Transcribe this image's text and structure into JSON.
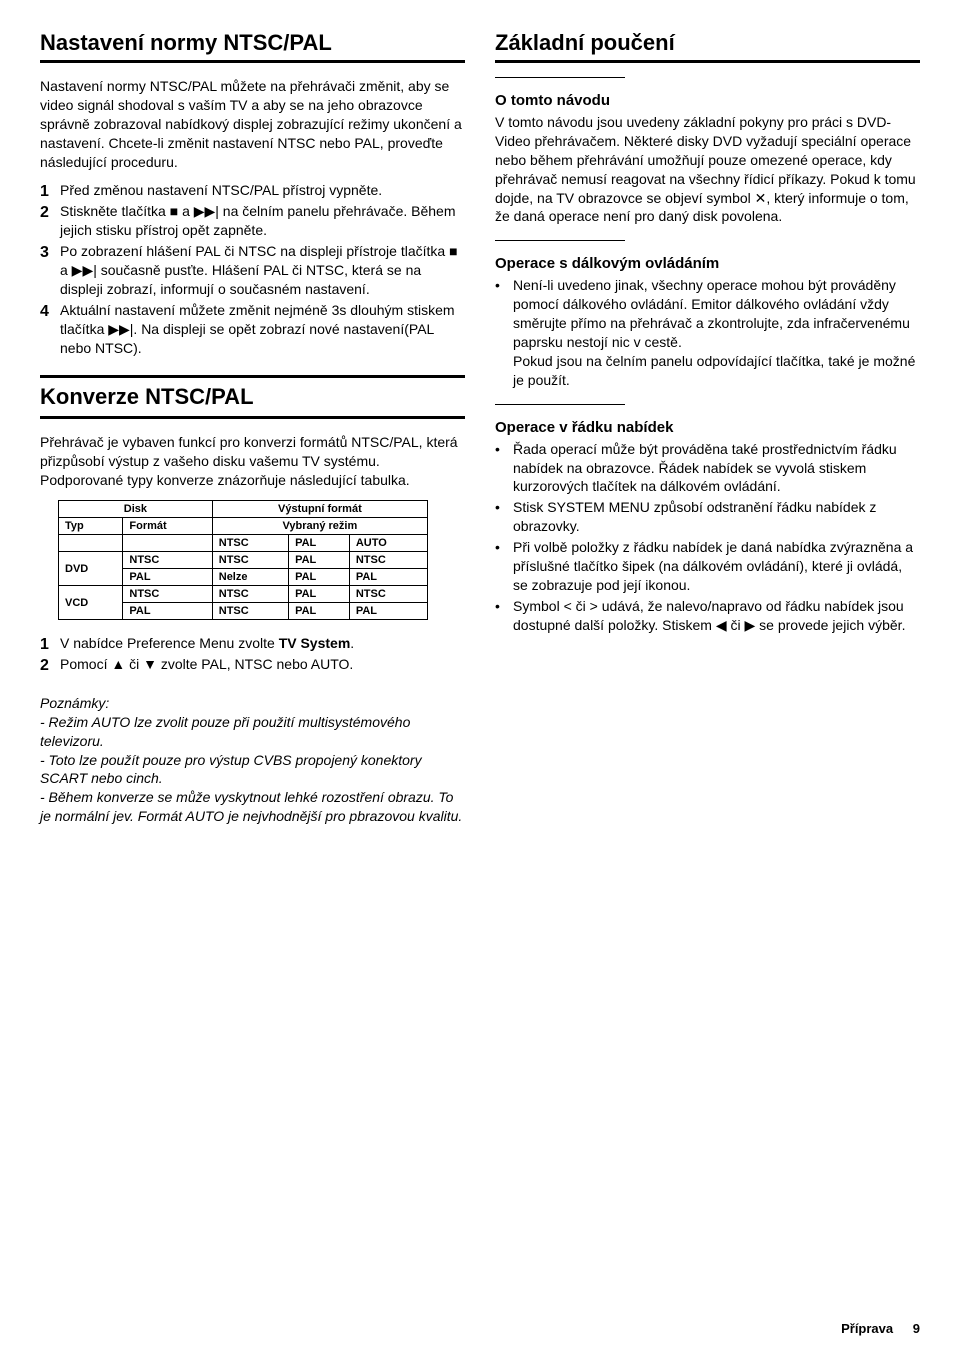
{
  "left": {
    "h1": "Nastavení normy NTSC/PAL",
    "intro": "Nastavení normy NTSC/PAL můžete na přehrávači změnit, aby se video signál shodoval s vaším TV a aby se na jeho obrazovce správně zobrazoval nabídkový displej zobrazující režimy ukončení a nastavení. Chcete-li změnit nastavení NTSC nebo PAL, proveďte následující proceduru.",
    "steps1": [
      "Před změnou nastavení NTSC/PAL přístroj vypněte.",
      "Stiskněte tlačítka ■ a ▶▶| na čelním panelu přehrávače. Během jejich stisku přístroj opět zapněte.",
      "Po zobrazení hlášení PAL či NTSC na displeji přístroje tlačítka ■ a ▶▶| současně pusťte. Hlášení PAL či NTSC, která se na displeji zobrazí, informují o současném nastavení.",
      "Aktuální nastavení můžete změnit nejméně 3s dlouhým stiskem tlačítka ▶▶|. Na displeji se opět zobrazí nové nastavení(PAL nebo NTSC)."
    ],
    "h2": "Konverze NTSC/PAL",
    "konv_intro": "Přehrávač je vybaven funkcí pro konverzi formátů NTSC/PAL, která přizpůsobí výstup z vašeho disku vašemu TV systému. Podporované typy konverze znázorňuje následující tabulka.",
    "table": {
      "disk_hdr": "Disk",
      "vystup_hdr": "Výstupní formát",
      "typ": "Typ",
      "format": "Formát",
      "vybr": "Vybraný režim",
      "cols": [
        "NTSC",
        "PAL",
        "AUTO"
      ],
      "rows": [
        [
          "DVD",
          "NTSC",
          "NTSC",
          "PAL",
          "NTSC"
        ],
        [
          "",
          "PAL",
          "Nelze",
          "PAL",
          "PAL"
        ],
        [
          "VCD",
          "NTSC",
          "NTSC",
          "PAL",
          "NTSC"
        ],
        [
          "",
          "PAL",
          "NTSC",
          "PAL",
          "PAL"
        ]
      ]
    },
    "steps2": [
      "V nabídce Preference Menu zvolte TV System.",
      "Pomocí ▲ či ▼ zvolte PAL, NTSC nebo AUTO."
    ],
    "step2_bold": "TV System",
    "notes_title": "Poznámky:",
    "notes": [
      "- Režim AUTO lze zvolit pouze při použití multisystémového televizoru.",
      "- Toto lze použít pouze pro výstup CVBS propojený konektory SCART nebo cinch.",
      "- Během konverze se může vyskytnout lehké rozostření obrazu. To je normální jev. Formát AUTO je nejvhodnější pro pbrazovou kvalitu."
    ]
  },
  "right": {
    "h1": "Základní poučení",
    "o_tomto_h": "O tomto návodu",
    "o_tomto": "V tomto návodu jsou uvedeny základní pokyny pro práci s DVD-Video přehrávačem. Některé disky DVD vyžadují speciální operace nebo během přehrávání umožňují pouze omezené operace, kdy přehrávač nemusí reagovat na všechny řídicí příkazy. Pokud k tomu dojde, na TV obrazovce se objeví symbol ✕, který informuje o tom, že daná operace není pro daný disk povolena.",
    "dalk_h": "Operace s dálkovým ovládáním",
    "dalk_items": [
      "Není-li uvedeno jinak, všechny operace mohou být prováděny pomocí dálkového ovládání. Emitor dálkového ovládání vždy směrujte přímo na přehrávač a zkontrolujte, zda infračervenému paprsku nestojí nic v cestě.\nPokud jsou na čelním panelu odpovídající tlačítka, také je možné je použít."
    ],
    "rad_h": "Operace v řádku nabídek",
    "rad_items": [
      "Řada operací může být prováděna také prostřednictvím řádku nabídek na obrazovce. Řádek nabídek se vyvolá stiskem kurzorových tlačítek na dálkovém ovládání.",
      "Stisk SYSTEM MENU způsobí odstranění řádku nabídek z obrazovky.",
      "Při volbě položky z řádku nabídek je daná nabídka zvýrazněna a příslušné tlačítko šipek (na dálkovém ovládání), které ji ovládá, se zobrazuje pod její ikonou.",
      "Symbol < či > udává, že nalevo/napravo od řádku nabídek jsou dostupné další položky. Stiskem ◀ či ▶ se provede jejich výběr."
    ]
  },
  "footer": {
    "section": "Příprava",
    "page": "9"
  }
}
